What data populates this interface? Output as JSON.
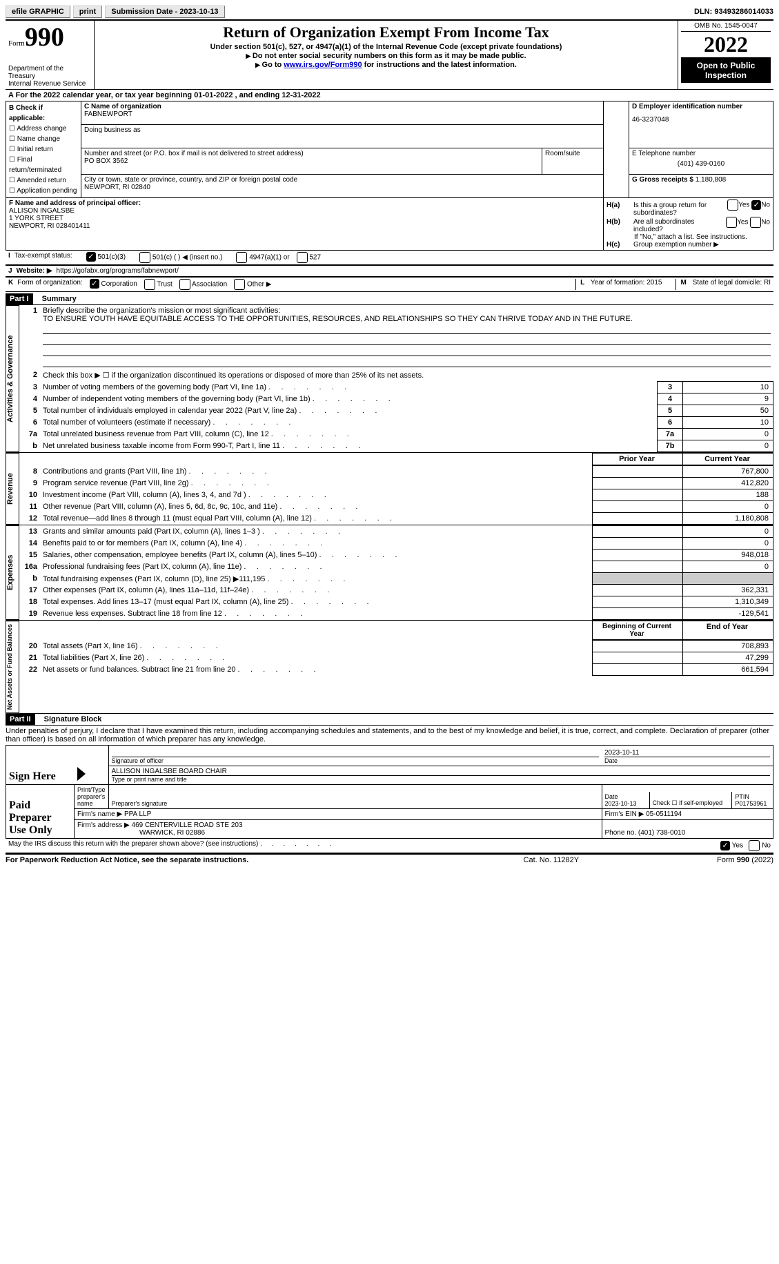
{
  "topbar": {
    "efile": "efile GRAPHIC",
    "print": "print",
    "subdate_label": "Submission Date - ",
    "subdate": "2023-10-13",
    "dln_label": "DLN: ",
    "dln": "93493286014033"
  },
  "header": {
    "form_label": "Form",
    "form_num": "990",
    "dept": "Department of the Treasury",
    "irs": "Internal Revenue Service",
    "title": "Return of Organization Exempt From Income Tax",
    "sub1": "Under section 501(c), 527, or 4947(a)(1) of the Internal Revenue Code (except private foundations)",
    "sub2": "Do not enter social security numbers on this form as it may be made public.",
    "sub3_pre": "Go to ",
    "sub3_link": "www.irs.gov/Form990",
    "sub3_post": " for instructions and the latest information.",
    "omb": "OMB No. 1545-0047",
    "year": "2022",
    "open1": "Open to Public",
    "open2": "Inspection"
  },
  "sectionA": {
    "text": "A For the 2022 calendar year, or tax year beginning 01-01-2022     , and ending 12-31-2022"
  },
  "boxB": {
    "label": "B Check if applicable:",
    "items": [
      "Address change",
      "Name change",
      "Initial return",
      "Final return/terminated",
      "Amended return",
      "Application pending"
    ]
  },
  "boxC": {
    "label": "C Name of organization",
    "name": "FABNEWPORT",
    "dba_label": "Doing business as",
    "addr_label": "Number and street (or P.O. box if mail is not delivered to street address)",
    "room_label": "Room/suite",
    "addr": "PO BOX 3562",
    "city_label": "City or town, state or province, country, and ZIP or foreign postal code",
    "city": "NEWPORT, RI  02840"
  },
  "boxD": {
    "label": "D Employer identification number",
    "ein": "46-3237048"
  },
  "boxE": {
    "label": "E Telephone number",
    "phone": "(401) 439-0160"
  },
  "boxG": {
    "label": "G Gross receipts $",
    "val": "1,180,808"
  },
  "boxF": {
    "label": "F Name and address of principal officer:",
    "name": "ALLISON INGALSBE",
    "addr1": "1 YORK STREET",
    "addr2": "NEWPORT, RI  028401411"
  },
  "boxH": {
    "a_label": "H(a)",
    "a_text": "Is this a group return for subordinates?",
    "b_label": "H(b)",
    "b_text": "Are all subordinates included?",
    "b_note": "If \"No,\" attach a list. See instructions.",
    "c_label": "H(c)",
    "c_text": "Group exemption number ▶",
    "yes": "Yes",
    "no": "No"
  },
  "rowI": {
    "label": "I",
    "text": "Tax-exempt status:",
    "opts": [
      "501(c)(3)",
      "501(c) (  ) ◀ (insert no.)",
      "4947(a)(1) or",
      "527"
    ]
  },
  "rowJ": {
    "label": "J",
    "text": "Website: ▶",
    "url": "https://gofabx.org/programs/fabnewport/"
  },
  "rowK": {
    "label": "K",
    "text": "Form of organization:",
    "opts": [
      "Corporation",
      "Trust",
      "Association",
      "Other ▶"
    ]
  },
  "rowL": {
    "label": "L",
    "text": "Year of formation: ",
    "val": "2015"
  },
  "rowM": {
    "label": "M",
    "text": "State of legal domicile: ",
    "val": "RI"
  },
  "part1": {
    "header": "Part I",
    "title": "Summary",
    "line1_label": "1",
    "line1_text": "Briefly describe the organization's mission or most significant activities:",
    "line1_val": "TO ENSURE YOUTH HAVE EQUITABLE ACCESS TO THE OPPORTUNITIES, RESOURCES, AND RELATIONSHIPS SO THEY CAN THRIVE TODAY AND IN THE FUTURE.",
    "line2_label": "2",
    "line2_text": "Check this box ▶ ☐ if the organization discontinued its operations or disposed of more than 25% of its net assets.",
    "sides": {
      "activities": "Activities & Governance",
      "revenue": "Revenue",
      "expenses": "Expenses",
      "netassets": "Net Assets or Fund Balances"
    },
    "rows_gov": [
      {
        "n": "3",
        "t": "Number of voting members of the governing body (Part VI, line 1a)",
        "box": "3",
        "v": "10"
      },
      {
        "n": "4",
        "t": "Number of independent voting members of the governing body (Part VI, line 1b)",
        "box": "4",
        "v": "9"
      },
      {
        "n": "5",
        "t": "Total number of individuals employed in calendar year 2022 (Part V, line 2a)",
        "box": "5",
        "v": "50"
      },
      {
        "n": "6",
        "t": "Total number of volunteers (estimate if necessary)",
        "box": "6",
        "v": "10"
      },
      {
        "n": "7a",
        "t": "Total unrelated business revenue from Part VIII, column (C), line 12",
        "box": "7a",
        "v": "0"
      },
      {
        "n": "b",
        "t": "Net unrelated business taxable income from Form 990-T, Part I, line 11",
        "box": "7b",
        "v": "0"
      }
    ],
    "col_headers": {
      "prior": "Prior Year",
      "current": "Current Year"
    },
    "rows_rev": [
      {
        "n": "8",
        "t": "Contributions and grants (Part VIII, line 1h)",
        "cur": "767,800"
      },
      {
        "n": "9",
        "t": "Program service revenue (Part VIII, line 2g)",
        "cur": "412,820"
      },
      {
        "n": "10",
        "t": "Investment income (Part VIII, column (A), lines 3, 4, and 7d )",
        "cur": "188"
      },
      {
        "n": "11",
        "t": "Other revenue (Part VIII, column (A), lines 5, 6d, 8c, 9c, 10c, and 11e)",
        "cur": "0"
      },
      {
        "n": "12",
        "t": "Total revenue—add lines 8 through 11 (must equal Part VIII, column (A), line 12)",
        "cur": "1,180,808"
      }
    ],
    "rows_exp": [
      {
        "n": "13",
        "t": "Grants and similar amounts paid (Part IX, column (A), lines 1–3 )",
        "cur": "0"
      },
      {
        "n": "14",
        "t": "Benefits paid to or for members (Part IX, column (A), line 4)",
        "cur": "0"
      },
      {
        "n": "15",
        "t": "Salaries, other compensation, employee benefits (Part IX, column (A), lines 5–10)",
        "cur": "948,018"
      },
      {
        "n": "16a",
        "t": "Professional fundraising fees (Part IX, column (A), line 11e)",
        "cur": "0"
      },
      {
        "n": "b",
        "t": "Total fundraising expenses (Part IX, column (D), line 25) ▶111,195",
        "shaded": true
      },
      {
        "n": "17",
        "t": "Other expenses (Part IX, column (A), lines 11a–11d, 11f–24e)",
        "cur": "362,331"
      },
      {
        "n": "18",
        "t": "Total expenses. Add lines 13–17 (must equal Part IX, column (A), line 25)",
        "cur": "1,310,349"
      },
      {
        "n": "19",
        "t": "Revenue less expenses. Subtract line 18 from line 12",
        "cur": "-129,541"
      }
    ],
    "col_headers2": {
      "beg": "Beginning of Current Year",
      "end": "End of Year"
    },
    "rows_net": [
      {
        "n": "20",
        "t": "Total assets (Part X, line 16)",
        "end": "708,893"
      },
      {
        "n": "21",
        "t": "Total liabilities (Part X, line 26)",
        "end": "47,299"
      },
      {
        "n": "22",
        "t": "Net assets or fund balances. Subtract line 21 from line 20",
        "end": "661,594"
      }
    ]
  },
  "part2": {
    "header": "Part II",
    "title": "Signature Block",
    "decl": "Under penalties of perjury, I declare that I have examined this return, including accompanying schedules and statements, and to the best of my knowledge and belief, it is true, correct, and complete. Declaration of preparer (other than officer) is based on all information of which preparer has any knowledge.",
    "sign_here": "Sign Here",
    "sig_officer": "Signature of officer",
    "sig_date": "2023-10-11",
    "date_label": "Date",
    "name_title": "ALLISON INGALSBE  BOARD CHAIR",
    "type_name": "Type or print name and title",
    "paid_prep": "Paid Preparer Use Only",
    "print_name_label": "Print/Type preparer's name",
    "prep_sig_label": "Preparer's signature",
    "date2_label": "Date",
    "date2": "2023-10-13",
    "check_if": "Check ☐ if self-employed",
    "ptin_label": "PTIN",
    "ptin": "P01753961",
    "firm_name_label": "Firm's name    ▶",
    "firm_name": "PPA LLP",
    "firm_ein_label": "Firm's EIN ▶",
    "firm_ein": "05-0511194",
    "firm_addr_label": "Firm's address ▶",
    "firm_addr1": "469 CENTERVILLE ROAD STE 203",
    "firm_addr2": "WARWICK, RI  02886",
    "phone_label": "Phone no. ",
    "phone": "(401) 738-0010",
    "may_irs": "May the IRS discuss this return with the preparer shown above? (see instructions)",
    "yes": "Yes",
    "no": "No"
  },
  "footer": {
    "left": "For Paperwork Reduction Act Notice, see the separate instructions.",
    "mid": "Cat. No. 11282Y",
    "right_form": "Form ",
    "right_num": "990",
    "right_year": " (2022)"
  }
}
